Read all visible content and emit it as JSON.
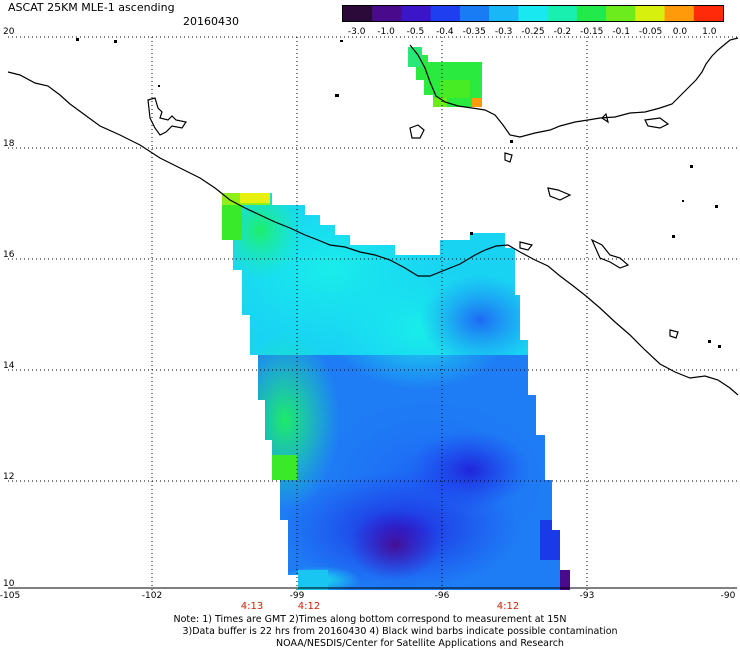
{
  "header": {
    "title": "ASCAT 25KM MLE-1 ascending",
    "date": "20160430"
  },
  "colorbar": {
    "labels": [
      "-3.0",
      "-1.0",
      "-0.5",
      "-0.4",
      "-0.35",
      "-0.3",
      "-0.25",
      "-0.2",
      "-0.15",
      "-0.1",
      "-0.05",
      "0.0",
      "1.0"
    ],
    "colors": [
      "#2b0a3a",
      "#4a0a8c",
      "#3a16c8",
      "#1e3ef0",
      "#1a7cf5",
      "#19b7f5",
      "#19e8f0",
      "#19f0b0",
      "#22ea4a",
      "#6cec1c",
      "#d8f00e",
      "#ff9a0a",
      "#ff2a0a"
    ]
  },
  "axes": {
    "lat_labels": [
      "20",
      "18",
      "16",
      "14",
      "12",
      "10"
    ],
    "lon_labels": [
      "-105",
      "-102",
      "-99",
      "-96",
      "-93",
      "-90"
    ]
  },
  "time_labels": [
    "4:13",
    "4:12",
    "4:12"
  ],
  "notes": {
    "line1": "Note: 1) Times are GMT 2)Times along bottom correspond to measurement at 15N",
    "line2": "3)Data buffer is 22 hrs from 20160430 4) Black wind barbs indicate possible contamination",
    "line3": "NOAA/NESDIS/Center for Satellite Applications and Research"
  }
}
